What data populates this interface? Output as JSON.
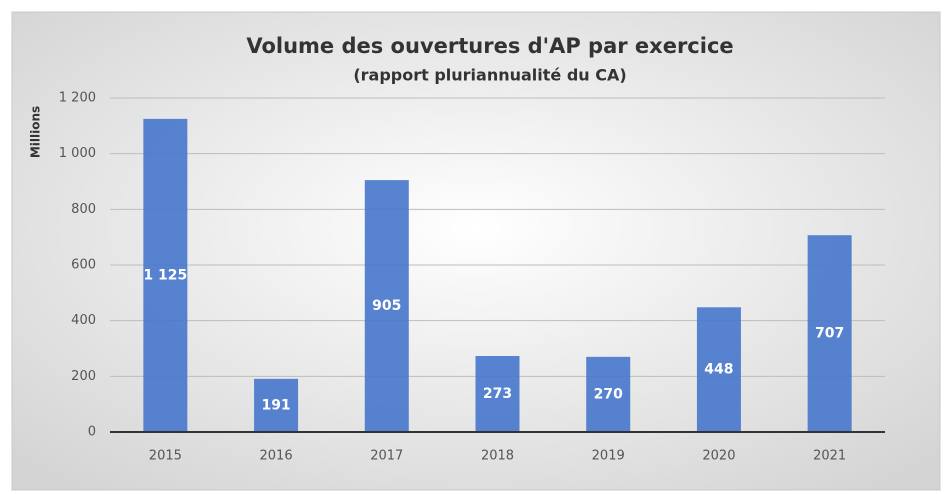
{
  "chart_data": {
    "type": "bar",
    "title": "Volume des ouvertures d'AP par exercice",
    "subtitle": "(rapport pluriannualité du CA)",
    "y_label": "Millions",
    "categories": [
      "2015",
      "2016",
      "2017",
      "2018",
      "2019",
      "2020",
      "2021"
    ],
    "values": [
      1125,
      191,
      905,
      273,
      270,
      448,
      707
    ],
    "value_labels": [
      "1 125",
      "191",
      "905",
      "273",
      "270",
      "448",
      "707"
    ],
    "color": "#4a78cc",
    "ylim": [
      0,
      1200
    ],
    "yticks": [
      0,
      200,
      400,
      600,
      800,
      {
        "value": 1000,
        "label": "1 000"
      },
      {
        "value": 1200,
        "label": "1 200"
      }
    ],
    "grid": true
  }
}
